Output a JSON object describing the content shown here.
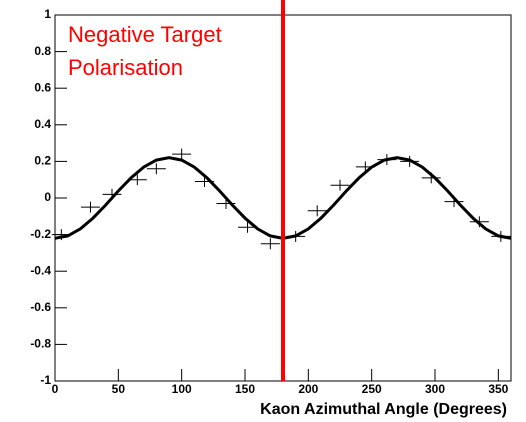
{
  "chart_data": {
    "type": "scatter",
    "xlabel": "Kaon Azimuthal Angle (Degrees)",
    "annotation": [
      "Negative Target",
      "Polarisation"
    ],
    "annotation_color": "#ff0000",
    "vline": 180,
    "vline_color": "#ff0000",
    "xlim": [
      0,
      360
    ],
    "xticks": [
      0,
      50,
      100,
      150,
      200,
      250,
      300,
      350
    ],
    "ylim": [
      -1,
      1
    ],
    "yticks": [
      -1,
      -0.8,
      -0.6,
      -0.4,
      -0.2,
      0,
      0.2,
      0.4,
      0.6,
      0.8,
      1
    ],
    "points": {
      "color": "#000000",
      "xerr": 7.5,
      "yerr": 0.03,
      "x": [
        5,
        28,
        45,
        65,
        80,
        100,
        118,
        135,
        152,
        170,
        190,
        207,
        225,
        245,
        262,
        280,
        297,
        315,
        335,
        352
      ],
      "values": [
        -0.2,
        -0.05,
        0.02,
        0.1,
        0.16,
        0.24,
        0.09,
        -0.03,
        -0.16,
        -0.25,
        -0.21,
        -0.07,
        0.07,
        0.17,
        0.21,
        0.2,
        0.11,
        -0.02,
        -0.13,
        -0.21
      ]
    },
    "fit": {
      "color": "#000000",
      "x": [
        0,
        10,
        20,
        30,
        40,
        50,
        60,
        70,
        80,
        90,
        100,
        110,
        120,
        130,
        140,
        150,
        160,
        170,
        180,
        190,
        200,
        210,
        220,
        230,
        240,
        250,
        260,
        270,
        280,
        290,
        300,
        310,
        320,
        330,
        340,
        350,
        360
      ],
      "values": [
        -0.22,
        -0.207,
        -0.169,
        -0.11,
        -0.038,
        0.038,
        0.11,
        0.169,
        0.207,
        0.22,
        0.207,
        0.169,
        0.11,
        0.038,
        -0.038,
        -0.11,
        -0.169,
        -0.207,
        -0.22,
        -0.207,
        -0.169,
        -0.11,
        -0.038,
        0.038,
        0.11,
        0.169,
        0.207,
        0.22,
        0.207,
        0.169,
        0.11,
        0.038,
        -0.038,
        -0.11,
        -0.169,
        -0.207,
        -0.22
      ]
    }
  }
}
